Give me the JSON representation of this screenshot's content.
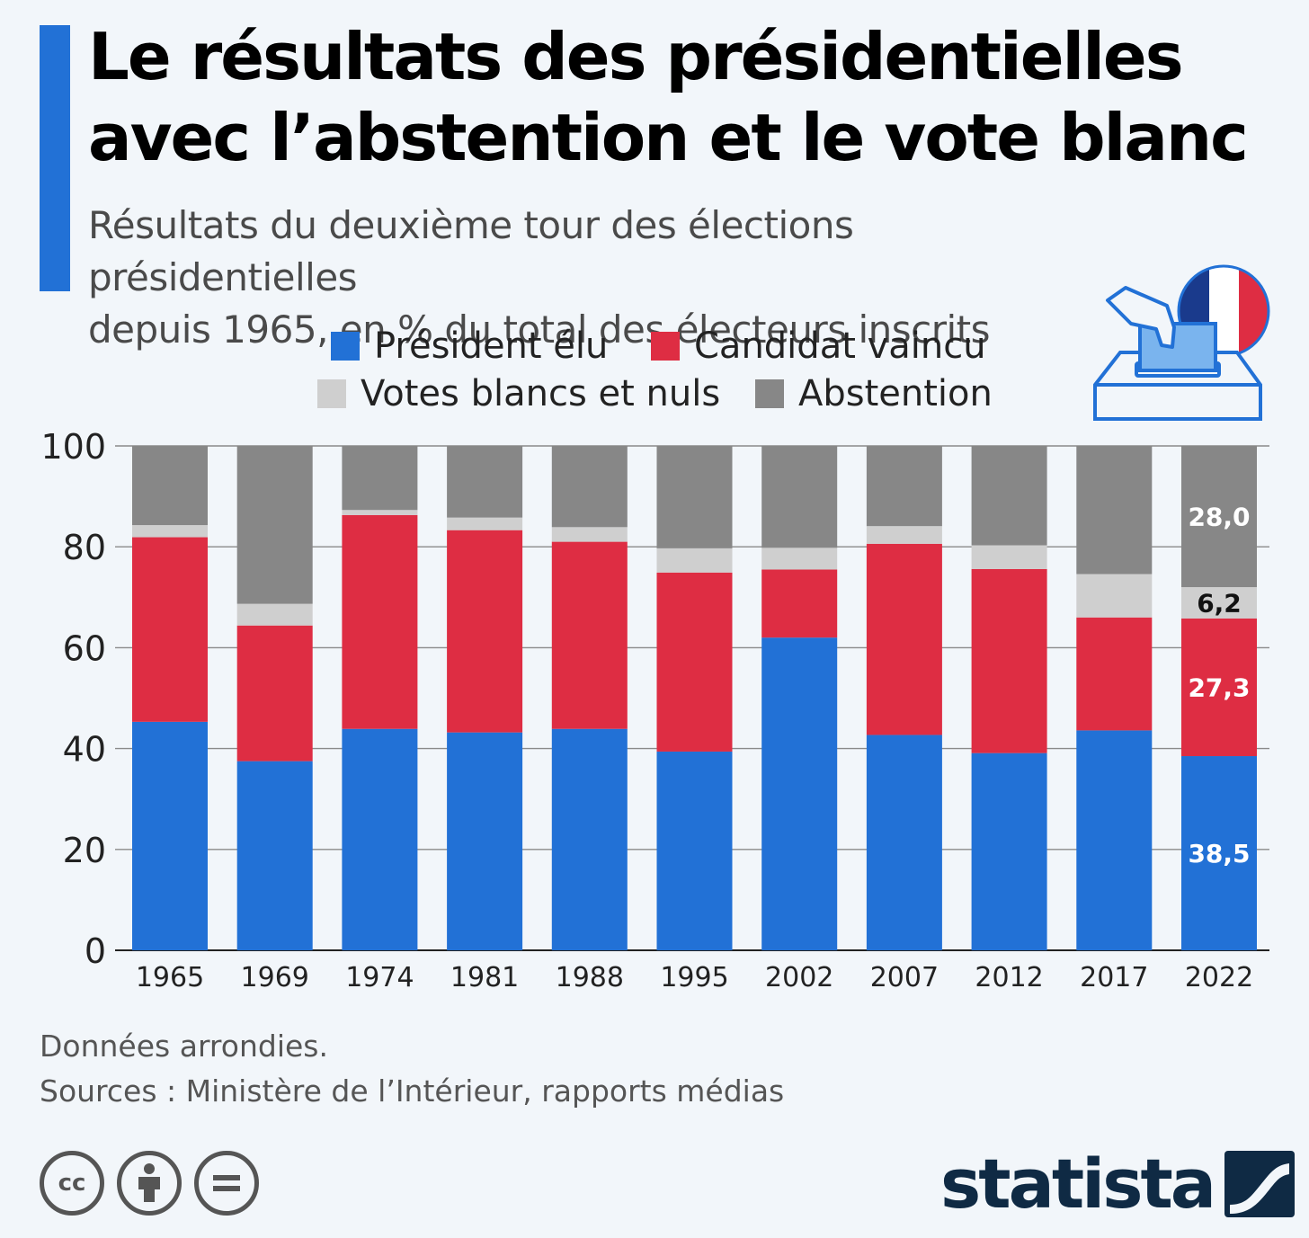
{
  "header": {
    "title_line1": "Le résultats des présidentielles",
    "title_line2": "avec l’abstention et le vote blanc",
    "subtitle_line1": "Résultats du deuxième tour des élections présidentielles",
    "subtitle_line2": "depuis 1965, en % du total des électeurs inscrits"
  },
  "legend": {
    "items": [
      "Président élu",
      "Candidat vaincu",
      "Votes blancs et nuls",
      "Abstention"
    ]
  },
  "colors": {
    "elu": "#2271d6",
    "vaincu": "#de2d43",
    "blancs": "#cfcfcf",
    "abstention": "#878787",
    "accent": "#2271d6",
    "background": "#f2f6fa"
  },
  "icons": [
    "ballot-box-icon",
    "french-flag-icon",
    "creative-commons-icon",
    "attribution-icon",
    "no-derivatives-icon",
    "statista-logo-icon"
  ],
  "chart_data": {
    "type": "bar",
    "stacked": true,
    "categories": [
      "1965",
      "1969",
      "1974",
      "1981",
      "1988",
      "1995",
      "2002",
      "2007",
      "2012",
      "2017",
      "2022"
    ],
    "series": [
      {
        "name": "Président élu",
        "values": [
          45.3,
          37.5,
          43.9,
          43.2,
          43.9,
          39.4,
          62.0,
          42.7,
          39.1,
          43.6,
          38.5
        ]
      },
      {
        "name": "Candidat vaincu",
        "values": [
          36.6,
          26.9,
          42.4,
          40.1,
          37.1,
          35.5,
          13.5,
          37.9,
          36.5,
          22.4,
          27.3
        ]
      },
      {
        "name": "Votes blancs et nuls",
        "values": [
          2.4,
          4.3,
          1.0,
          2.5,
          2.9,
          4.8,
          4.3,
          3.5,
          4.7,
          8.6,
          6.2
        ]
      },
      {
        "name": "Abstention",
        "values": [
          15.7,
          31.3,
          12.7,
          14.2,
          16.1,
          20.3,
          20.2,
          15.9,
          19.7,
          25.4,
          28.0
        ]
      }
    ],
    "data_labels": [
      {
        "category": "2022",
        "series": "Président élu",
        "text": "38,5"
      },
      {
        "category": "2022",
        "series": "Candidat vaincu",
        "text": "27,3"
      },
      {
        "category": "2022",
        "series": "Votes blancs et nuls",
        "text": "6,2"
      },
      {
        "category": "2022",
        "series": "Abstention",
        "text": "28,0"
      }
    ],
    "ylim": [
      0,
      100
    ],
    "yticks": [
      0,
      20,
      40,
      60,
      80,
      100
    ],
    "grid": true,
    "legend_position": "top"
  },
  "footer": {
    "note": "Données arrondies.",
    "sources": "Sources : Ministère de l’Intérieur, rapports médias",
    "brand": "statista"
  }
}
